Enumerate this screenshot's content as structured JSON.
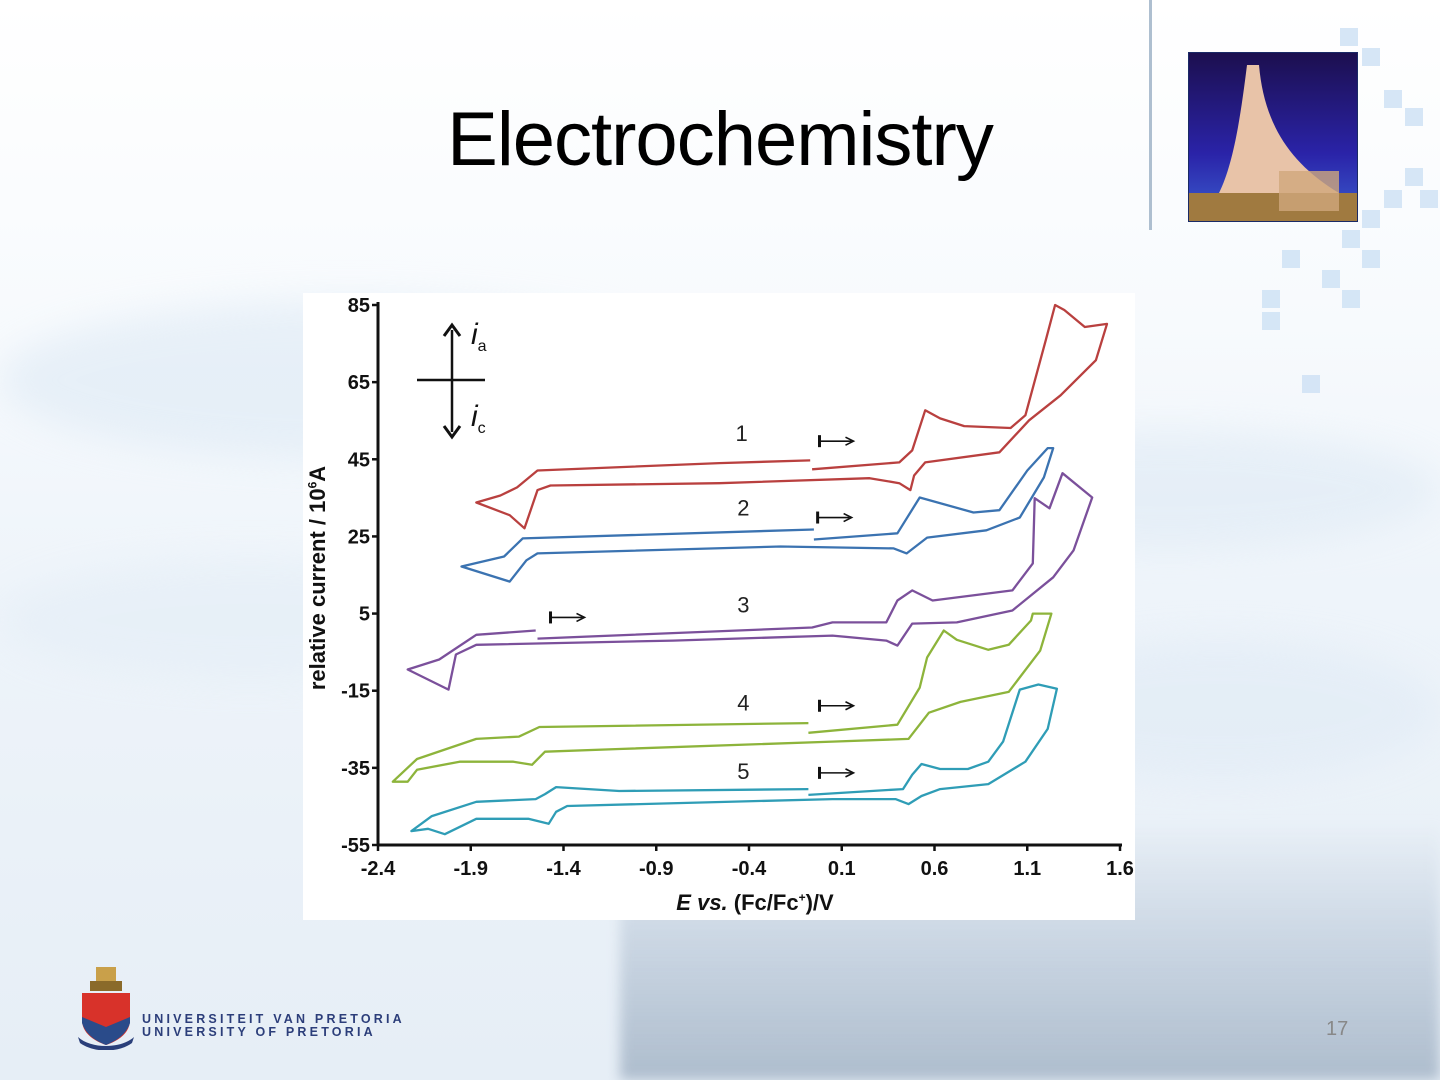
{
  "slide": {
    "title": "Electrochemistry",
    "page_number": "17",
    "university_line1": "UNIVERSITEIT VAN PRETORIA",
    "university_line2": "UNIVERSITY OF PRETORIA"
  },
  "colors": {
    "s1": "#b9403f",
    "s2": "#3b73b1",
    "s3": "#7b509b",
    "s4": "#8db43b",
    "s5": "#2f9db6",
    "axis": "#111111"
  },
  "chart_data": {
    "type": "line",
    "title": "",
    "xlabel_parts": {
      "e": "E",
      "vs": " vs.",
      "rest": " (Fc/Fc",
      "sup": "+",
      "tail": ")/V"
    },
    "ylabel_parts": {
      "main": "relative current / 10",
      "sup": "6",
      "unit": "A"
    },
    "inset": {
      "anodic": "i",
      "anodic_sub": "a",
      "cathodic": "i",
      "cathodic_sub": "c"
    },
    "xlim": [
      -2.4,
      1.6
    ],
    "ylim": [
      -55,
      85
    ],
    "xticks": [
      "-2.4",
      "-1.9",
      "-1.4",
      "-0.9",
      "-0.4",
      "0.1",
      "0.6",
      "1.1",
      "1.6"
    ],
    "yticks": [
      "85",
      "65",
      "45",
      "25",
      "5",
      "-15",
      "-35",
      "-55"
    ],
    "grid": false,
    "series": [
      {
        "name": "1",
        "color_key": "s1",
        "label_at": [
          -0.44,
          51.8
        ],
        "start_arrow": [
          -0.02,
          49.7
        ],
        "points": [
          [
            -0.06,
            42.4
          ],
          [
            0.41,
            44.2
          ],
          [
            0.48,
            47.3
          ],
          [
            0.55,
            57.7
          ],
          [
            0.63,
            55.6
          ],
          [
            0.76,
            53.6
          ],
          [
            1.01,
            53.1
          ],
          [
            1.09,
            56.4
          ],
          [
            1.2,
            75.9
          ],
          [
            1.25,
            85
          ],
          [
            1.3,
            83.7
          ],
          [
            1.41,
            79.3
          ],
          [
            1.53,
            80.1
          ],
          [
            1.47,
            70.7
          ],
          [
            1.28,
            61.6
          ],
          [
            1.11,
            55.1
          ],
          [
            0.95,
            46.8
          ],
          [
            0.55,
            44.2
          ],
          [
            0.49,
            40.8
          ],
          [
            0.47,
            37
          ],
          [
            0.41,
            38.8
          ],
          [
            0.25,
            40.1
          ],
          [
            -0.56,
            38.8
          ],
          [
            -1.47,
            38.2
          ],
          [
            -1.54,
            37
          ],
          [
            -1.61,
            27.1
          ],
          [
            -1.69,
            30.5
          ],
          [
            -1.87,
            33.8
          ],
          [
            -1.74,
            35.6
          ],
          [
            -1.65,
            37.7
          ],
          [
            -1.54,
            42.1
          ],
          [
            -0.56,
            44
          ],
          [
            -0.07,
            44.7
          ]
        ]
      },
      {
        "name": "2",
        "color_key": "s2",
        "label_at": [
          -0.43,
          32.5
        ],
        "start_arrow": [
          -0.03,
          29.9
        ],
        "points": [
          [
            -0.05,
            24.2
          ],
          [
            0.4,
            25.8
          ],
          [
            0.52,
            35.1
          ],
          [
            0.81,
            31.2
          ],
          [
            0.95,
            31.8
          ],
          [
            1.1,
            42.1
          ],
          [
            1.21,
            47.9
          ],
          [
            1.24,
            47.9
          ],
          [
            1.19,
            40.3
          ],
          [
            1.06,
            29.9
          ],
          [
            0.88,
            26.6
          ],
          [
            0.56,
            24.7
          ],
          [
            0.45,
            20.6
          ],
          [
            0.38,
            21.9
          ],
          [
            -0.23,
            22.4
          ],
          [
            -1.54,
            20.6
          ],
          [
            -1.6,
            18.8
          ],
          [
            -1.69,
            13.3
          ],
          [
            -1.95,
            17.2
          ],
          [
            -1.72,
            19.8
          ],
          [
            -1.62,
            24.5
          ],
          [
            -0.05,
            26.8
          ]
        ]
      },
      {
        "name": "3",
        "color_key": "s3",
        "label_at": [
          -0.43,
          7.3
        ],
        "start_arrow": [
          -1.47,
          4
        ],
        "points": [
          [
            -1.54,
            -1.5
          ],
          [
            -0.06,
            1.4
          ],
          [
            0.05,
            2.7
          ],
          [
            0.34,
            2.7
          ],
          [
            0.4,
            8.4
          ],
          [
            0.48,
            11
          ],
          [
            0.59,
            8.4
          ],
          [
            1.02,
            11
          ],
          [
            1.13,
            18
          ],
          [
            1.14,
            34.9
          ],
          [
            1.22,
            32.3
          ],
          [
            1.29,
            41.4
          ],
          [
            1.45,
            35.1
          ],
          [
            1.35,
            21.4
          ],
          [
            1.24,
            14.4
          ],
          [
            1.02,
            5.8
          ],
          [
            0.72,
            2.7
          ],
          [
            0.48,
            2.4
          ],
          [
            0.4,
            -3.3
          ],
          [
            0.34,
            -2.0
          ],
          [
            0.05,
            -0.7
          ],
          [
            -0.81,
            -2.0
          ],
          [
            -1.87,
            -3.1
          ],
          [
            -1.98,
            -5.6
          ],
          [
            -2.02,
            -14.7
          ],
          [
            -2.24,
            -9.5
          ],
          [
            -2.07,
            -6.9
          ],
          [
            -1.87,
            -0.5
          ],
          [
            -1.55,
            0.6
          ]
        ]
      },
      {
        "name": "4",
        "color_key": "s4",
        "label_at": [
          -0.43,
          -18.1
        ],
        "start_arrow": [
          -0.02,
          -18.9
        ],
        "points": [
          [
            -0.08,
            -25.9
          ],
          [
            0.4,
            -23.8
          ],
          [
            0.52,
            -14.2
          ],
          [
            0.56,
            -6.4
          ],
          [
            0.65,
            0.6
          ],
          [
            0.72,
            -1.8
          ],
          [
            0.89,
            -4.4
          ],
          [
            1.0,
            -3.1
          ],
          [
            1.12,
            3.2
          ],
          [
            1.13,
            5
          ],
          [
            1.23,
            5
          ],
          [
            1.17,
            -4.6
          ],
          [
            1.0,
            -15.3
          ],
          [
            0.74,
            -17.9
          ],
          [
            0.57,
            -20.7
          ],
          [
            0.46,
            -27.5
          ],
          [
            0.05,
            -28.2
          ],
          [
            -1.1,
            -30.1
          ],
          [
            -1.5,
            -30.8
          ],
          [
            -1.57,
            -34.2
          ],
          [
            -1.67,
            -33.4
          ],
          [
            -1.96,
            -33.4
          ],
          [
            -2.19,
            -35.5
          ],
          [
            -2.24,
            -38.6
          ],
          [
            -2.32,
            -38.6
          ],
          [
            -2.19,
            -32.7
          ],
          [
            -1.87,
            -27.5
          ],
          [
            -1.64,
            -26.9
          ],
          [
            -1.53,
            -24.4
          ],
          [
            -0.08,
            -23.4
          ]
        ]
      },
      {
        "name": "5",
        "color_key": "s5",
        "label_at": [
          -0.43,
          -35.8
        ],
        "start_arrow": [
          -0.02,
          -36.3
        ],
        "points": [
          [
            -0.08,
            -42
          ],
          [
            0.43,
            -40.5
          ],
          [
            0.48,
            -36.8
          ],
          [
            0.53,
            -34
          ],
          [
            0.63,
            -35.3
          ],
          [
            0.78,
            -35.3
          ],
          [
            0.89,
            -33.4
          ],
          [
            0.97,
            -28.2
          ],
          [
            1.06,
            -14.7
          ],
          [
            1.16,
            -13.4
          ],
          [
            1.26,
            -14.5
          ],
          [
            1.21,
            -24.9
          ],
          [
            1.09,
            -33.4
          ],
          [
            0.89,
            -39.2
          ],
          [
            0.63,
            -40.5
          ],
          [
            0.53,
            -42.3
          ],
          [
            0.46,
            -44.4
          ],
          [
            0.39,
            -43.1
          ],
          [
            0.05,
            -43.1
          ],
          [
            -1.38,
            -44.9
          ],
          [
            -1.44,
            -46.4
          ],
          [
            -1.48,
            -49.5
          ],
          [
            -1.59,
            -48.2
          ],
          [
            -1.87,
            -48.2
          ],
          [
            -2.04,
            -52.2
          ],
          [
            -2.13,
            -50.8
          ],
          [
            -2.22,
            -51.4
          ],
          [
            -2.11,
            -47.5
          ],
          [
            -1.87,
            -43.8
          ],
          [
            -1.55,
            -43.1
          ],
          [
            -1.5,
            -41.8
          ],
          [
            -1.44,
            -40
          ],
          [
            -1.1,
            -41
          ],
          [
            -0.08,
            -40.5
          ]
        ]
      }
    ]
  }
}
